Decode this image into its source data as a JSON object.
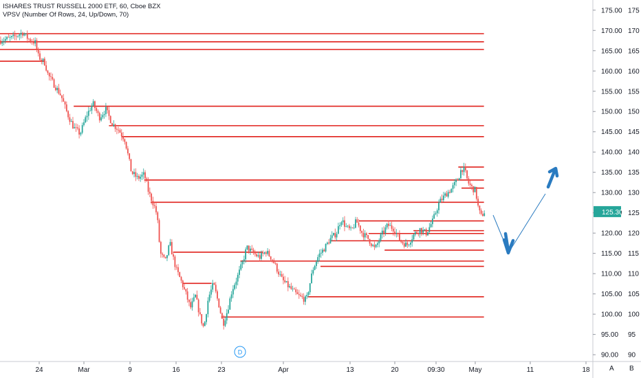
{
  "header": {
    "symbol_line": "ISHARES TRUST RUSSELL 2000 ETF, 60, Cboe BZX",
    "indicator_line": "VPSV (Number Of Rows, 24, Up/Down, 70)"
  },
  "price_axis_primary": [
    "175.00",
    "170.00",
    "165.00",
    "160.00",
    "155.00",
    "150.00",
    "145.00",
    "140.00",
    "135.00",
    "130.00",
    "125.00",
    "120.00",
    "115.00",
    "110.00",
    "105.00",
    "100.00",
    "95.00",
    "90.00"
  ],
  "price_axis_secondary": [
    "175",
    "170",
    "165",
    "160",
    "155",
    "150",
    "145",
    "140",
    "135",
    "130",
    "125",
    "120",
    "115",
    "110",
    "105",
    "100",
    "95",
    "90"
  ],
  "last_price_label": "125.30",
  "time_axis": [
    "24",
    "Mar",
    "9",
    "16",
    "23",
    "Apr",
    "13",
    "20",
    "09:30",
    "May",
    "11",
    "18"
  ],
  "event_marker": "D",
  "bottom_buttons": [
    "A",
    "B"
  ],
  "colors": {
    "up": "#26a69a",
    "down": "#ef5350",
    "level": "#e0201b",
    "arrow": "#2a7bc0",
    "last_price": "#26a69a"
  },
  "chart_data": {
    "type": "candlestick",
    "price_range": [
      89,
      177
    ],
    "levels": [
      {
        "price": 169.2,
        "x_start": 0,
        "x_end": 0.755
      },
      {
        "price": 167.2,
        "x_start": 0,
        "x_end": 0.755
      },
      {
        "price": 165.3,
        "x_start": 0,
        "x_end": 0.755
      },
      {
        "price": 162.4,
        "x_start": 0,
        "x_end": 0.07
      },
      {
        "price": 151.3,
        "x_start": 0.115,
        "x_end": 0.755
      },
      {
        "price": 146.5,
        "x_start": 0.17,
        "x_end": 0.755
      },
      {
        "price": 143.8,
        "x_start": 0.19,
        "x_end": 0.755
      },
      {
        "price": 136.3,
        "x_start": 0.715,
        "x_end": 0.755
      },
      {
        "price": 133.1,
        "x_start": 0.225,
        "x_end": 0.755
      },
      {
        "price": 131.1,
        "x_start": 0.72,
        "x_end": 0.755
      },
      {
        "price": 127.6,
        "x_start": 0.235,
        "x_end": 0.755
      },
      {
        "price": 123.0,
        "x_start": 0.56,
        "x_end": 0.755
      },
      {
        "price": 120.6,
        "x_start": 0.645,
        "x_end": 0.755
      },
      {
        "price": 119.9,
        "x_start": 0.575,
        "x_end": 0.755
      },
      {
        "price": 118.1,
        "x_start": 0.515,
        "x_end": 0.755
      },
      {
        "price": 115.8,
        "x_start": 0.6,
        "x_end": 0.755
      },
      {
        "price": 115.3,
        "x_start": 0.27,
        "x_end": 0.41
      },
      {
        "price": 113.1,
        "x_start": 0.375,
        "x_end": 0.755
      },
      {
        "price": 111.8,
        "x_start": 0.5,
        "x_end": 0.755
      },
      {
        "price": 107.6,
        "x_start": 0.285,
        "x_end": 0.33
      },
      {
        "price": 104.3,
        "x_start": 0.48,
        "x_end": 0.755
      },
      {
        "price": 99.3,
        "x_start": 0.345,
        "x_end": 0.755
      }
    ],
    "price_path": [
      [
        0.0,
        167.5
      ],
      [
        0.02,
        168.2
      ],
      [
        0.035,
        169.5
      ],
      [
        0.045,
        167.8
      ],
      [
        0.055,
        167.0
      ],
      [
        0.06,
        163.5
      ],
      [
        0.07,
        162.0
      ],
      [
        0.075,
        159.0
      ],
      [
        0.085,
        156.5
      ],
      [
        0.095,
        154.0
      ],
      [
        0.105,
        149.5
      ],
      [
        0.115,
        146.0
      ],
      [
        0.125,
        144.5
      ],
      [
        0.135,
        149.0
      ],
      [
        0.145,
        152.0
      ],
      [
        0.155,
        148.5
      ],
      [
        0.165,
        150.5
      ],
      [
        0.175,
        147.0
      ],
      [
        0.185,
        145.5
      ],
      [
        0.195,
        143.0
      ],
      [
        0.205,
        135.0
      ],
      [
        0.215,
        133.5
      ],
      [
        0.225,
        134.5
      ],
      [
        0.232,
        130.0
      ],
      [
        0.24,
        127.0
      ],
      [
        0.245,
        124.5
      ],
      [
        0.25,
        115.0
      ],
      [
        0.258,
        113.0
      ],
      [
        0.265,
        117.5
      ],
      [
        0.27,
        114.0
      ],
      [
        0.275,
        111.0
      ],
      [
        0.283,
        108.0
      ],
      [
        0.29,
        105.0
      ],
      [
        0.297,
        101.5
      ],
      [
        0.305,
        104.5
      ],
      [
        0.312,
        99.5
      ],
      [
        0.318,
        96.5
      ],
      [
        0.325,
        104.0
      ],
      [
        0.333,
        107.5
      ],
      [
        0.342,
        102.0
      ],
      [
        0.348,
        97.5
      ],
      [
        0.355,
        101.0
      ],
      [
        0.362,
        106.0
      ],
      [
        0.37,
        109.0
      ],
      [
        0.378,
        112.5
      ],
      [
        0.385,
        116.5
      ],
      [
        0.395,
        115.0
      ],
      [
        0.405,
        114.0
      ],
      [
        0.415,
        115.5
      ],
      [
        0.425,
        113.5
      ],
      [
        0.44,
        108.5
      ],
      [
        0.452,
        106.5
      ],
      [
        0.465,
        104.5
      ],
      [
        0.478,
        103.5
      ],
      [
        0.488,
        111.0
      ],
      [
        0.497,
        114.5
      ],
      [
        0.505,
        116.0
      ],
      [
        0.515,
        118.5
      ],
      [
        0.525,
        120.0
      ],
      [
        0.532,
        123.5
      ],
      [
        0.54,
        121.5
      ],
      [
        0.548,
        120.5
      ],
      [
        0.556,
        123.0
      ],
      [
        0.565,
        120.0
      ],
      [
        0.575,
        118.5
      ],
      [
        0.585,
        116.0
      ],
      [
        0.595,
        119.5
      ],
      [
        0.605,
        122.0
      ],
      [
        0.615,
        121.0
      ],
      [
        0.625,
        118.0
      ],
      [
        0.635,
        117.0
      ],
      [
        0.645,
        119.5
      ],
      [
        0.655,
        121.0
      ],
      [
        0.665,
        120.0
      ],
      [
        0.675,
        123.0
      ],
      [
        0.685,
        127.5
      ],
      [
        0.695,
        129.5
      ],
      [
        0.705,
        131.0
      ],
      [
        0.715,
        133.5
      ],
      [
        0.72,
        136.0
      ],
      [
        0.725,
        135.5
      ],
      [
        0.73,
        132.5
      ],
      [
        0.737,
        131.0
      ],
      [
        0.742,
        130.5
      ],
      [
        0.745,
        127.0
      ],
      [
        0.75,
        124.0
      ],
      [
        0.756,
        125.3
      ]
    ]
  }
}
